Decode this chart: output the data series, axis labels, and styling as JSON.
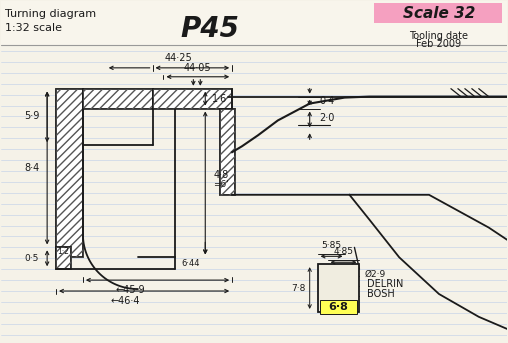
{
  "title_text": "Turning diagram",
  "scale_text": "1:32 scale",
  "center_title": "P45",
  "scale_box_text": "Scale 32",
  "tooling_line1": "Tooling date",
  "tooling_line2": "Feb 2009",
  "bg_color": "#f0ede0",
  "paper_color": "#f5f2e8",
  "line_color": "#1a1a1a",
  "hatch_color": "#2a2a2a",
  "scale_box_color": "#f5a0c0",
  "yellow_box_color": "#ffff55",
  "ruled_line_color": "#c8d4e8",
  "fig_width": 5.08,
  "fig_height": 3.43,
  "dpi": 100,
  "note_32": "Scale 32"
}
